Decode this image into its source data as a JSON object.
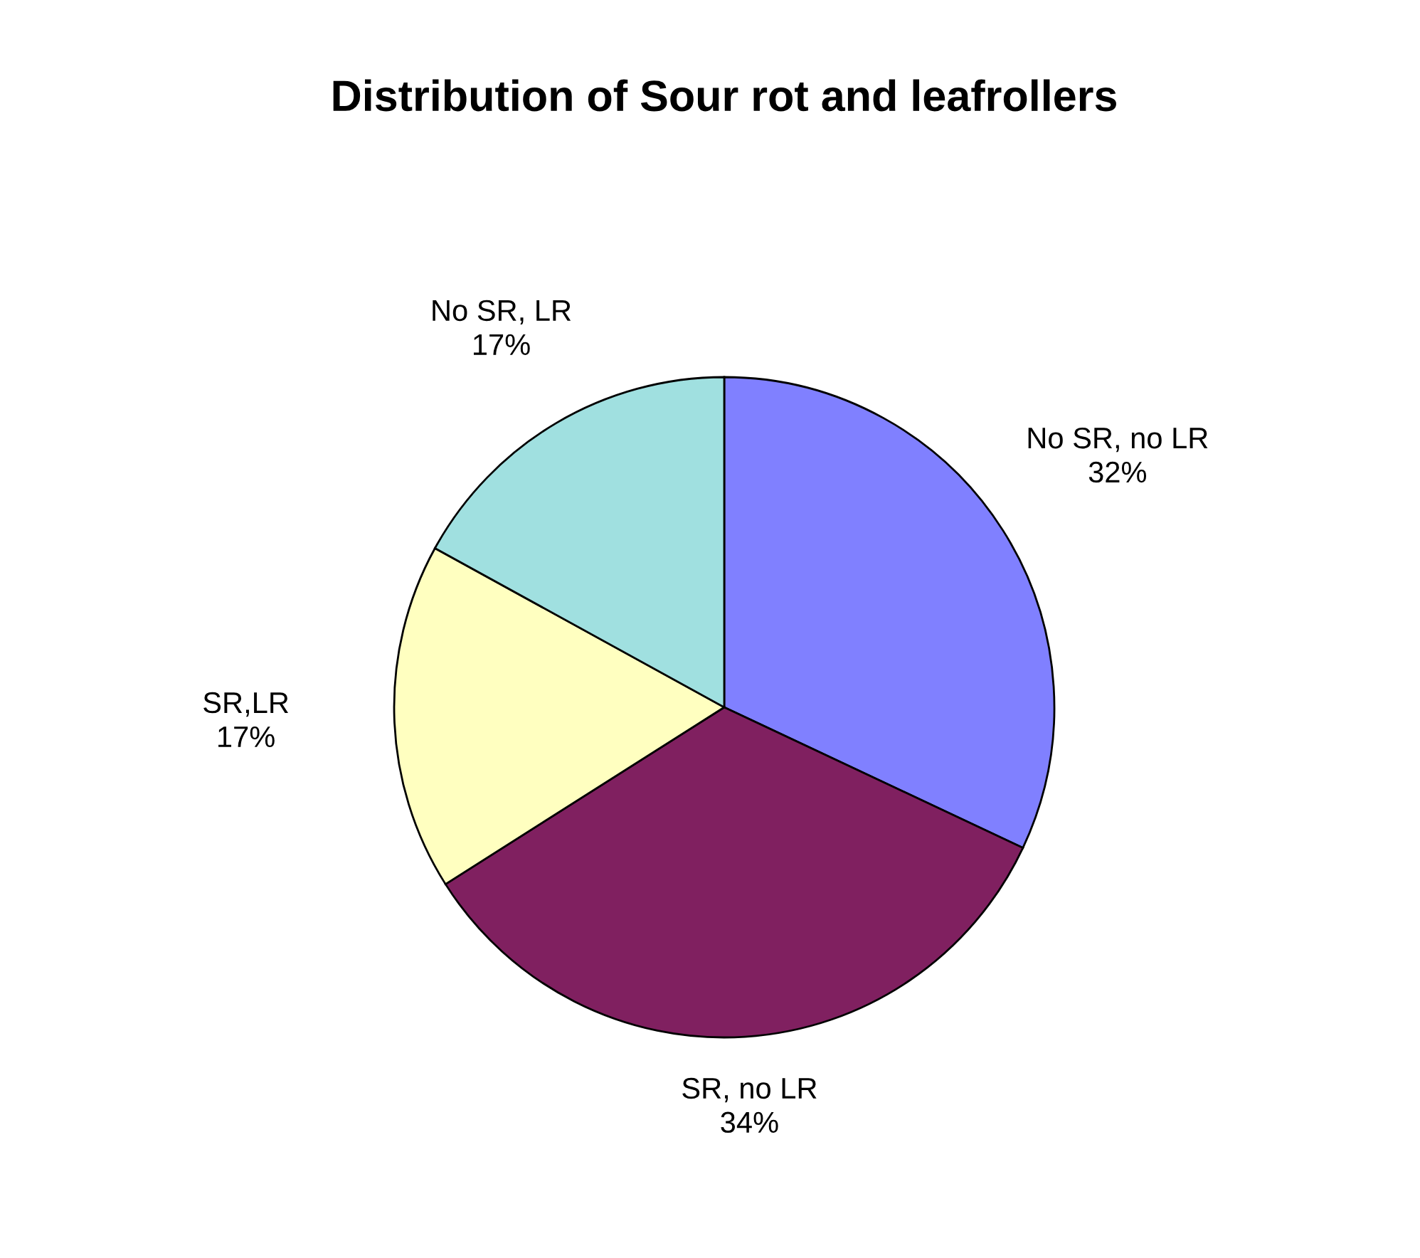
{
  "chart_data": {
    "type": "pie",
    "title": "Distribution of Sour rot and leafrollers",
    "categories": [
      "No SR, no LR",
      "SR, no LR",
      "SR,LR",
      "No SR, LR"
    ],
    "values": [
      32,
      34,
      17,
      17
    ],
    "value_labels": [
      "32%",
      "34%",
      "17%",
      "17%"
    ],
    "colors": [
      "#8080ff",
      "#802060",
      "#ffffc0",
      "#a0e0e0"
    ],
    "legend": false
  }
}
